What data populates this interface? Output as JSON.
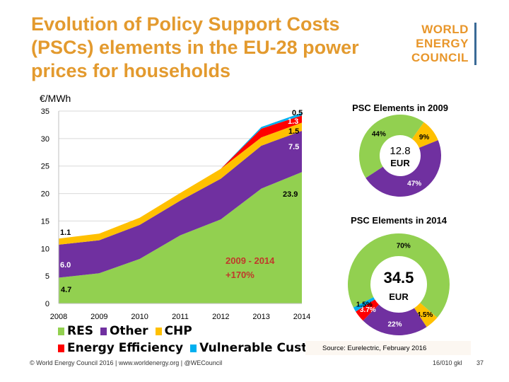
{
  "title": "Evolution of Policy Support Costs (PSCs) elements in the EU-28 power prices for households",
  "logo": {
    "lines": [
      "WORLD",
      "ENERGY",
      "COUNCIL"
    ],
    "color": "#E8962A",
    "bar_color": "#3A6A96"
  },
  "unit_label": "€/MWh",
  "colors": {
    "RES": "#92D050",
    "Other": "#7030A0",
    "CHP": "#FFC000",
    "Energy Efficiency": "#FF0000",
    "Vulnerable Cust": "#00B0F0"
  },
  "chart_data": [
    {
      "type": "area",
      "stacked": true,
      "x": [
        "2008",
        "2009",
        "2010",
        "2011",
        "2012",
        "2013",
        "2014"
      ],
      "ylim": [
        0,
        35
      ],
      "yticks": [
        0,
        5,
        10,
        15,
        20,
        25,
        30,
        35
      ],
      "grid": true,
      "series": [
        {
          "name": "RES",
          "values": [
            4.7,
            5.5,
            8.1,
            12.4,
            15.3,
            20.9,
            23.9
          ]
        },
        {
          "name": "Other",
          "values": [
            6.0,
            6.0,
            6.2,
            6.3,
            7.4,
            7.8,
            7.5
          ]
        },
        {
          "name": "CHP",
          "values": [
            1.1,
            1.2,
            1.3,
            1.4,
            1.8,
            1.5,
            1.5
          ]
        },
        {
          "name": "Energy Efficiency",
          "values": [
            0,
            0,
            0,
            0,
            0,
            1.6,
            1.3
          ]
        },
        {
          "name": "Vulnerable Cust",
          "values": [
            0,
            0,
            0,
            0,
            0,
            0.3,
            0.5
          ]
        }
      ],
      "data_labels": {
        "res_2008": "4.7",
        "other_2008": "6.0",
        "chp_2008": "1.1",
        "res_2014": "23.9",
        "other_2014": "7.5",
        "chp_2014": "1.5",
        "ee_2014": "1.3",
        "vc_2014": "0.5"
      },
      "annotation": [
        "2009 - 2014",
        "+170%"
      ],
      "legend": "bottom"
    },
    {
      "type": "pie",
      "title": "PSC Elements in  2009",
      "center_text": [
        "12.8",
        "EUR"
      ],
      "slices": [
        {
          "name": "RES",
          "value": 44,
          "label": "44%"
        },
        {
          "name": "CHP",
          "value": 9,
          "label": "9%"
        },
        {
          "name": "Other",
          "value": 47,
          "label": "47%"
        }
      ]
    },
    {
      "type": "pie",
      "title": "PSC Elements in 2014",
      "center_text": [
        "34.5",
        "EUR"
      ],
      "slices": [
        {
          "name": "RES",
          "value": 70,
          "label": "70%"
        },
        {
          "name": "CHP",
          "value": 4.5,
          "label": "4.5%"
        },
        {
          "name": "Other",
          "value": 22,
          "label": "22%"
        },
        {
          "name": "Energy Efficiency",
          "value": 3.7,
          "label": "3.7%"
        },
        {
          "name": "Vulnerable Cust",
          "value": 1.5,
          "label": "1.5%"
        }
      ]
    }
  ],
  "legend": [
    "RES",
    "Other",
    "CHP",
    "Energy Efficiency",
    "Vulnerable Cust"
  ],
  "source": "Source: Eurelectric, February 2016",
  "footer": {
    "left": "© World Energy Council 2016 | www.worldenergy.org | @WECouncil",
    "code": "16/010 gkl",
    "page": "37"
  }
}
